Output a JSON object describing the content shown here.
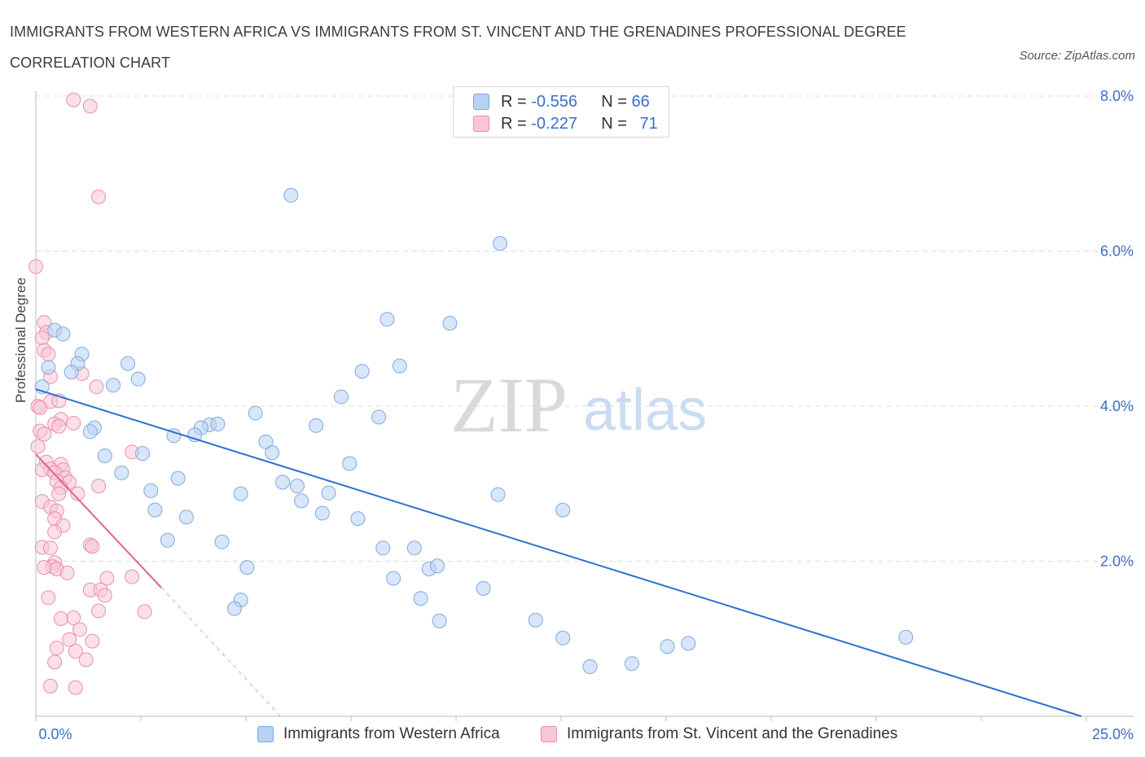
{
  "header": {
    "title": "IMMIGRANTS FROM WESTERN AFRICA VS IMMIGRANTS FROM ST. VINCENT AND THE GRENADINES PROFESSIONAL DEGREE CORRELATION CHART",
    "source": "Source: ZipAtlas.com"
  },
  "watermark": {
    "zip": "ZIP",
    "atlas": "atlas"
  },
  "legend": {
    "rows": [
      {
        "r_label": "R =",
        "r_value": "-0.556",
        "n_label": "N =",
        "n_value": "66"
      },
      {
        "r_label": "R =",
        "r_value": "-0.227",
        "n_label": "N =",
        "n_value": "71"
      }
    ]
  },
  "colors": {
    "blue_fill": "#b8d2f4",
    "blue_stroke": "#7fa9e3",
    "blue_line": "#2f6fd0",
    "pink_fill": "#f8c6d6",
    "pink_stroke": "#ea8fae",
    "pink_line": "#e0628f",
    "grid": "#dddddd",
    "tick_text": "#3a6fc6"
  },
  "chart_data": {
    "type": "scatter",
    "title": "IMMIGRANTS FROM WESTERN AFRICA VS IMMIGRANTS FROM ST. VINCENT AND THE GRENADINES PROFESSIONAL DEGREE CORRELATION CHART",
    "xlabel": "",
    "ylabel": "Professional Degree",
    "xlim": [
      0,
      25
    ],
    "ylim": [
      0,
      8
    ],
    "x_tick_labels": [
      "0.0%",
      "25.0%"
    ],
    "y_ticks": [
      2,
      4,
      6,
      8
    ],
    "y_tick_labels": [
      "2.0%",
      "4.0%",
      "6.0%",
      "8.0%"
    ],
    "grid": true,
    "legend_position": "top-center",
    "series": [
      {
        "name": "Immigrants from Western Africa",
        "color": "#7fa9e3",
        "points": [
          [
            6.1,
            6.72
          ],
          [
            11.1,
            6.1
          ],
          [
            8.4,
            5.12
          ],
          [
            9.9,
            5.07
          ],
          [
            0.45,
            4.98
          ],
          [
            0.65,
            4.93
          ],
          [
            1.1,
            4.67
          ],
          [
            1.0,
            4.55
          ],
          [
            2.2,
            4.55
          ],
          [
            0.85,
            4.44
          ],
          [
            7.8,
            4.45
          ],
          [
            8.7,
            4.52
          ],
          [
            2.45,
            4.35
          ],
          [
            1.85,
            4.27
          ],
          [
            7.3,
            4.12
          ],
          [
            5.25,
            3.91
          ],
          [
            8.2,
            3.86
          ],
          [
            6.7,
            3.75
          ],
          [
            1.4,
            3.72
          ],
          [
            1.3,
            3.67
          ],
          [
            4.15,
            3.76
          ],
          [
            4.35,
            3.77
          ],
          [
            3.95,
            3.72
          ],
          [
            3.3,
            3.62
          ],
          [
            3.8,
            3.63
          ],
          [
            5.5,
            3.54
          ],
          [
            5.65,
            3.4
          ],
          [
            2.55,
            3.39
          ],
          [
            1.65,
            3.36
          ],
          [
            7.5,
            3.26
          ],
          [
            2.05,
            3.14
          ],
          [
            3.4,
            3.07
          ],
          [
            5.9,
            3.02
          ],
          [
            6.25,
            2.97
          ],
          [
            2.75,
            2.91
          ],
          [
            4.9,
            2.87
          ],
          [
            7.0,
            2.88
          ],
          [
            11.05,
            2.86
          ],
          [
            6.35,
            2.78
          ],
          [
            2.85,
            2.66
          ],
          [
            12.6,
            2.66
          ],
          [
            6.85,
            2.62
          ],
          [
            3.6,
            2.57
          ],
          [
            7.7,
            2.55
          ],
          [
            3.15,
            2.27
          ],
          [
            4.45,
            2.25
          ],
          [
            8.3,
            2.17
          ],
          [
            9.05,
            2.17
          ],
          [
            5.05,
            1.92
          ],
          [
            9.4,
            1.9
          ],
          [
            9.6,
            1.94
          ],
          [
            8.55,
            1.78
          ],
          [
            10.7,
            1.65
          ],
          [
            9.2,
            1.52
          ],
          [
            4.9,
            1.5
          ],
          [
            4.75,
            1.39
          ],
          [
            9.65,
            1.23
          ],
          [
            11.95,
            1.24
          ],
          [
            12.6,
            1.01
          ],
          [
            15.6,
            0.94
          ],
          [
            15.1,
            0.9
          ],
          [
            20.8,
            1.02
          ],
          [
            13.25,
            0.64
          ],
          [
            14.25,
            0.68
          ],
          [
            0.15,
            4.25
          ],
          [
            0.3,
            4.5
          ]
        ]
      },
      {
        "name": "Immigrants from St. Vincent and the Grenadines",
        "color": "#ea8fae",
        "points": [
          [
            0.9,
            7.95
          ],
          [
            1.3,
            7.87
          ],
          [
            1.5,
            6.7
          ],
          [
            0.0,
            5.8
          ],
          [
            0.2,
            5.08
          ],
          [
            0.25,
            4.95
          ],
          [
            0.15,
            4.88
          ],
          [
            0.2,
            4.72
          ],
          [
            0.3,
            4.67
          ],
          [
            1.1,
            4.42
          ],
          [
            0.35,
            4.38
          ],
          [
            1.45,
            4.25
          ],
          [
            0.35,
            4.06
          ],
          [
            0.55,
            4.07
          ],
          [
            0.05,
            4.0
          ],
          [
            0.1,
            3.98
          ],
          [
            0.6,
            3.83
          ],
          [
            0.9,
            3.78
          ],
          [
            0.45,
            3.77
          ],
          [
            0.55,
            3.74
          ],
          [
            0.1,
            3.68
          ],
          [
            0.2,
            3.64
          ],
          [
            2.3,
            3.41
          ],
          [
            0.05,
            3.48
          ],
          [
            0.25,
            3.28
          ],
          [
            0.6,
            3.25
          ],
          [
            0.35,
            3.19
          ],
          [
            0.15,
            3.18
          ],
          [
            0.65,
            3.18
          ],
          [
            0.45,
            3.14
          ],
          [
            0.7,
            3.08
          ],
          [
            0.5,
            3.03
          ],
          [
            0.8,
            3.02
          ],
          [
            0.6,
            2.95
          ],
          [
            1.5,
            2.97
          ],
          [
            0.55,
            2.87
          ],
          [
            1.0,
            2.87
          ],
          [
            0.15,
            2.77
          ],
          [
            0.35,
            2.7
          ],
          [
            0.5,
            2.65
          ],
          [
            0.45,
            2.55
          ],
          [
            0.65,
            2.46
          ],
          [
            0.45,
            2.38
          ],
          [
            1.3,
            2.21
          ],
          [
            1.35,
            2.19
          ],
          [
            0.15,
            2.18
          ],
          [
            0.35,
            2.17
          ],
          [
            0.45,
            1.98
          ],
          [
            0.4,
            1.93
          ],
          [
            0.2,
            1.92
          ],
          [
            0.5,
            1.9
          ],
          [
            0.75,
            1.85
          ],
          [
            2.3,
            1.8
          ],
          [
            1.7,
            1.78
          ],
          [
            1.3,
            1.63
          ],
          [
            1.55,
            1.63
          ],
          [
            1.65,
            1.56
          ],
          [
            0.3,
            1.53
          ],
          [
            1.5,
            1.36
          ],
          [
            2.6,
            1.35
          ],
          [
            0.9,
            1.27
          ],
          [
            0.6,
            1.26
          ],
          [
            1.05,
            1.12
          ],
          [
            1.35,
            0.97
          ],
          [
            0.8,
            0.99
          ],
          [
            0.5,
            0.88
          ],
          [
            0.95,
            0.84
          ],
          [
            1.2,
            0.73
          ],
          [
            0.45,
            0.7
          ],
          [
            0.35,
            0.39
          ],
          [
            0.95,
            0.37
          ]
        ]
      }
    ],
    "trendlines": [
      {
        "series": "Immigrants from Western Africa",
        "x": [
          0,
          25
        ],
        "y": [
          4.22,
          0.0
        ],
        "style": "solid"
      },
      {
        "series": "Immigrants from St. Vincent and the Grenadines",
        "x": [
          0,
          3.0
        ],
        "y": [
          3.38,
          1.66
        ],
        "style": "solid"
      },
      {
        "series": "Immigrants from St. Vincent and the Grenadines",
        "x": [
          3.0,
          5.85
        ],
        "y": [
          1.66,
          0.0
        ],
        "style": "dashed"
      }
    ]
  }
}
